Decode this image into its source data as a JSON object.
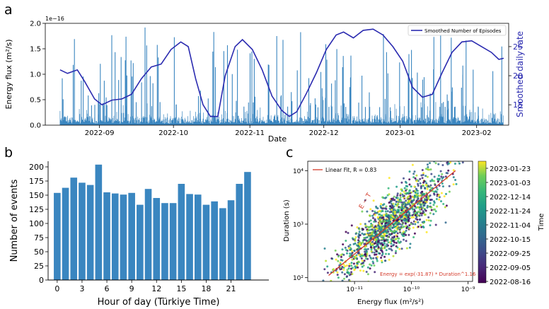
{
  "figure": {
    "panel_labels": [
      "a",
      "b",
      "c"
    ]
  },
  "colors": {
    "bar_blue": "#3a86c0",
    "line_navy": "#2b2bb0",
    "fit_red": "#d43a2a",
    "axis": "#000000"
  },
  "chart_data": [
    {
      "panel": "a",
      "type": "line",
      "xlabel": "Date",
      "ylabel": "Energy flux (m²/s)",
      "y_exponent_label": "1e−16",
      "ylim": [
        0,
        2.0
      ],
      "y_ticks": [
        "0.0",
        "0.5",
        "1.0",
        "1.5",
        "2.0"
      ],
      "y2label": "Smoothed daily rate",
      "y2lim": [
        11.5,
        29
      ],
      "y2_ticks": [
        "15",
        "20",
        "25"
      ],
      "x_range": [
        "2022-08-10",
        "2023-02-14"
      ],
      "x_ticks": [
        "2022-09",
        "2022-10",
        "2022-11",
        "2022-12",
        "2023-01",
        "2023-02"
      ],
      "legend": "Smoothed Number of Episodes",
      "legend_position": "top-right",
      "series": [
        {
          "name": "Smoothed Number of Episodes",
          "axis": "right",
          "points": [
            [
              "2022-08-16",
              21.0
            ],
            [
              "2022-08-19",
              20.4
            ],
            [
              "2022-08-23",
              21.0
            ],
            [
              "2022-08-26",
              19.0
            ],
            [
              "2022-08-30",
              16.0
            ],
            [
              "2022-09-02",
              15.0
            ],
            [
              "2022-09-06",
              15.8
            ],
            [
              "2022-09-10",
              16.0
            ],
            [
              "2022-09-14",
              16.8
            ],
            [
              "2022-09-18",
              19.5
            ],
            [
              "2022-09-22",
              21.5
            ],
            [
              "2022-09-26",
              22.0
            ],
            [
              "2022-09-30",
              24.5
            ],
            [
              "2022-10-04",
              25.8
            ],
            [
              "2022-10-07",
              25.0
            ],
            [
              "2022-10-10",
              19.5
            ],
            [
              "2022-10-13",
              15.0
            ],
            [
              "2022-10-16",
              13.0
            ],
            [
              "2022-10-19",
              13.0
            ],
            [
              "2022-10-22",
              20.0
            ],
            [
              "2022-10-26",
              25.0
            ],
            [
              "2022-10-29",
              26.2
            ],
            [
              "2022-11-02",
              24.5
            ],
            [
              "2022-11-06",
              21.0
            ],
            [
              "2022-11-10",
              16.5
            ],
            [
              "2022-11-14",
              14.0
            ],
            [
              "2022-11-17",
              13.0
            ],
            [
              "2022-11-20",
              13.8
            ],
            [
              "2022-11-24",
              17.0
            ],
            [
              "2022-11-28",
              20.5
            ],
            [
              "2022-12-02",
              24.5
            ],
            [
              "2022-12-06",
              27.0
            ],
            [
              "2022-12-09",
              27.5
            ],
            [
              "2022-12-13",
              26.5
            ],
            [
              "2022-12-17",
              27.8
            ],
            [
              "2022-12-21",
              28.0
            ],
            [
              "2022-12-25",
              27.0
            ],
            [
              "2022-12-29",
              25.0
            ],
            [
              "2023-01-02",
              22.5
            ],
            [
              "2023-01-06",
              18.0
            ],
            [
              "2023-01-10",
              16.3
            ],
            [
              "2023-01-14",
              16.8
            ],
            [
              "2023-01-18",
              20.5
            ],
            [
              "2023-01-22",
              24.0
            ],
            [
              "2023-01-26",
              25.8
            ],
            [
              "2023-01-30",
              26.0
            ],
            [
              "2023-02-03",
              25.0
            ],
            [
              "2023-02-07",
              24.0
            ],
            [
              "2023-02-10",
              22.8
            ],
            [
              "2023-02-12",
              23.0
            ]
          ]
        }
      ]
    },
    {
      "panel": "b",
      "type": "bar",
      "xlabel": "Hour of day (Türkiye Time)",
      "ylabel": "Number of events",
      "ylim": [
        0,
        210
      ],
      "y_ticks": [
        "0",
        "25",
        "50",
        "75",
        "100",
        "125",
        "150",
        "175",
        "200"
      ],
      "x_ticks": [
        "0",
        "3",
        "6",
        "9",
        "12",
        "15",
        "18",
        "21"
      ],
      "categories": [
        0,
        1,
        2,
        3,
        4,
        5,
        6,
        7,
        8,
        9,
        10,
        11,
        12,
        13,
        14,
        15,
        16,
        17,
        18,
        19,
        20,
        21,
        22,
        23
      ],
      "values": [
        154,
        163,
        181,
        172,
        168,
        204,
        155,
        153,
        151,
        154,
        133,
        161,
        145,
        136,
        136,
        170,
        152,
        151,
        133,
        139,
        127,
        141,
        170,
        191
      ]
    },
    {
      "panel": "c",
      "type": "scatter",
      "xlabel": "Energy flux (m²/s²)",
      "ylabel": "Duration (s)",
      "x_scale": "log",
      "y_scale": "log",
      "x_ticks": [
        "10⁻¹¹",
        "10⁻¹⁰",
        "10⁻⁹"
      ],
      "y_ticks": [
        "10²",
        "10³",
        "10⁴"
      ],
      "xlim": [
        1.5e-12,
        1.2e-09
      ],
      "ylim": [
        85,
        15000
      ],
      "legend": "Linear Fit, R = 0.83",
      "legend_position": "top-left",
      "fit_annotation": "Energy = exp(-31.87) * Duration^1.16",
      "diagonal_label": "E ~ T",
      "fit_line": [
        [
          3.5e-12,
          110
        ],
        [
          6e-10,
          10000
        ]
      ],
      "colorbar_label": "Time",
      "colorbar_ticks": [
        "2023-01-23",
        "2023-01-03",
        "2022-12-14",
        "2022-11-24",
        "2022-11-04",
        "2022-10-15",
        "2022-09-25",
        "2022-09-05",
        "2022-08-16"
      ],
      "colormap": "viridis",
      "point_count_approx": 3500
    }
  ]
}
